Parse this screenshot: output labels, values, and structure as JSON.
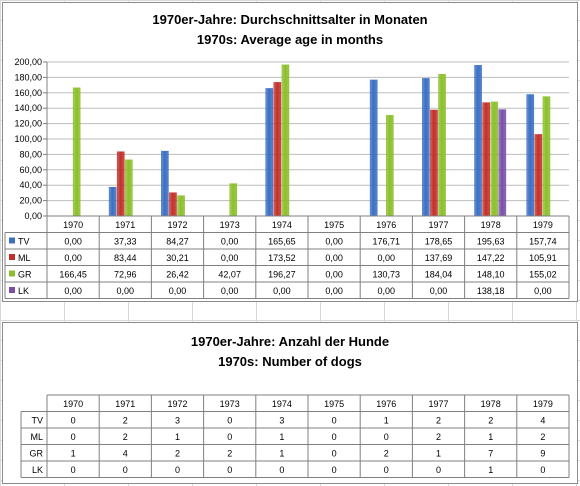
{
  "chart_data": [
    {
      "type": "bar",
      "title": "1970er-Jahre: Durchschnittsalter in Monaten",
      "subtitle": "1970s: Average age in months",
      "categories": [
        "1970",
        "1971",
        "1972",
        "1973",
        "1974",
        "1975",
        "1976",
        "1977",
        "1978",
        "1979"
      ],
      "ylim": [
        0,
        200
      ],
      "yticks": [
        "0,00",
        "20,00",
        "40,00",
        "60,00",
        "80,00",
        "100,00",
        "120,00",
        "140,00",
        "160,00",
        "180,00",
        "200,00"
      ],
      "grid": true,
      "legend": "data-table",
      "series": [
        {
          "name": "TV",
          "color": "#3a6fc4",
          "values": [
            0.0,
            37.33,
            84.27,
            0.0,
            165.65,
            0.0,
            176.71,
            178.65,
            195.63,
            157.74
          ],
          "labels": [
            "0,00",
            "37,33",
            "84,27",
            "0,00",
            "165,65",
            "0,00",
            "176,71",
            "178,65",
            "195,63",
            "157,74"
          ]
        },
        {
          "name": "ML",
          "color": "#c4302b",
          "values": [
            0.0,
            83.44,
            30.21,
            0.0,
            173.52,
            0.0,
            0.0,
            137.69,
            147.22,
            105.91
          ],
          "labels": [
            "0,00",
            "83,44",
            "30,21",
            "0,00",
            "173,52",
            "0,00",
            "0,00",
            "137,69",
            "147,22",
            "105,91"
          ]
        },
        {
          "name": "GR",
          "color": "#8cbf2b",
          "values": [
            166.45,
            72.96,
            26.42,
            42.07,
            196.27,
            0.0,
            130.73,
            184.04,
            148.1,
            155.02
          ],
          "labels": [
            "166,45",
            "72,96",
            "26,42",
            "42,07",
            "196,27",
            "0,00",
            "130,73",
            "184,04",
            "148,10",
            "155,02"
          ]
        },
        {
          "name": "LK",
          "color": "#7a4fa8",
          "values": [
            0.0,
            0.0,
            0.0,
            0.0,
            0.0,
            0.0,
            0.0,
            0.0,
            138.18,
            0.0
          ],
          "labels": [
            "0,00",
            "0,00",
            "0,00",
            "0,00",
            "0,00",
            "0,00",
            "0,00",
            "0,00",
            "138,18",
            "0,00"
          ]
        }
      ]
    },
    {
      "type": "table",
      "title": "1970er-Jahre: Anzahl der Hunde",
      "subtitle": "1970s: Number of dogs",
      "categories": [
        "1970",
        "1971",
        "1972",
        "1973",
        "1974",
        "1975",
        "1976",
        "1977",
        "1978",
        "1979"
      ],
      "rows": [
        {
          "name": "TV",
          "values": [
            0,
            2,
            3,
            0,
            3,
            0,
            1,
            2,
            2,
            4
          ]
        },
        {
          "name": "ML",
          "values": [
            0,
            2,
            1,
            0,
            1,
            0,
            0,
            2,
            1,
            2
          ]
        },
        {
          "name": "GR",
          "values": [
            1,
            4,
            2,
            2,
            1,
            0,
            2,
            1,
            7,
            9
          ]
        },
        {
          "name": "LK",
          "values": [
            0,
            0,
            0,
            0,
            0,
            0,
            0,
            0,
            1,
            0
          ]
        }
      ]
    }
  ]
}
